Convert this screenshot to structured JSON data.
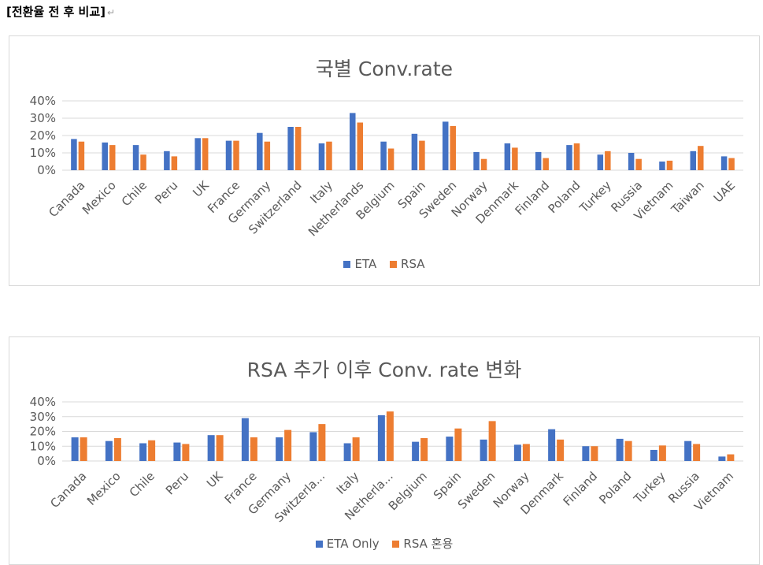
{
  "page": {
    "heading": "[전환율 전 후 비교]",
    "return_mark": "↵"
  },
  "colors": {
    "eta": "#4472C4",
    "rsa": "#ED7D31",
    "grid": "#d9d9d9",
    "text": "#595959"
  },
  "chart_data": [
    {
      "type": "bar",
      "title": "국별 Conv.rate",
      "categories": [
        "Canada",
        "Mexico",
        "Chile",
        "Peru",
        "UK",
        "France",
        "Germany",
        "Switzerland",
        "Italy",
        "Netherlands",
        "Belgium",
        "Spain",
        "Sweden",
        "Norway",
        "Denmark",
        "Finland",
        "Poland",
        "Turkey",
        "Russia",
        "Vietnam",
        "Taiwan",
        "UAE"
      ],
      "series": [
        {
          "name": "ETA",
          "values": [
            18,
            16,
            14.5,
            11,
            18.5,
            17,
            21.5,
            25,
            15.5,
            33,
            16.5,
            21,
            28,
            10.5,
            15.5,
            10.5,
            14.5,
            9,
            10,
            5,
            11,
            8
          ]
        },
        {
          "name": "RSA",
          "values": [
            16.5,
            14.5,
            9,
            8,
            18.5,
            17,
            16.5,
            25,
            16.5,
            27.5,
            12.5,
            17,
            25.5,
            6.5,
            13,
            7,
            15.5,
            11,
            6.5,
            5.5,
            14,
            7
          ]
        }
      ],
      "yticks": [
        "0%",
        "10%",
        "20%",
        "30%",
        "40%"
      ],
      "ylim": [
        0,
        40
      ],
      "legend": "bottom",
      "grid": true
    },
    {
      "type": "bar",
      "title": "RSA 추가 이후 Conv. rate 변화",
      "categories": [
        "Canada",
        "Mexico",
        "Chile",
        "Peru",
        "UK",
        "France",
        "Germany",
        "Switzerla...",
        "Italy",
        "Netherla...",
        "Belgium",
        "Spain",
        "Sweden",
        "Norway",
        "Denmark",
        "Finland",
        "Poland",
        "Turkey",
        "Russia",
        "Vietnam"
      ],
      "series": [
        {
          "name": "ETA Only",
          "values": [
            16,
            13.5,
            12,
            12.5,
            17.5,
            29,
            16,
            19.5,
            12,
            31,
            13,
            16.5,
            14.5,
            11,
            21.5,
            10,
            15,
            7.5,
            13.5,
            3
          ]
        },
        {
          "name": "RSA 혼용",
          "values": [
            16,
            15.5,
            14,
            11.5,
            17.5,
            16,
            21,
            25,
            16,
            33.5,
            15.5,
            22,
            27,
            11.5,
            14.5,
            10,
            13.5,
            10.5,
            11.5,
            4.5
          ]
        }
      ],
      "yticks": [
        "0%",
        "10%",
        "20%",
        "30%",
        "40%"
      ],
      "ylim": [
        0,
        40
      ],
      "legend": "bottom",
      "grid": true
    }
  ]
}
